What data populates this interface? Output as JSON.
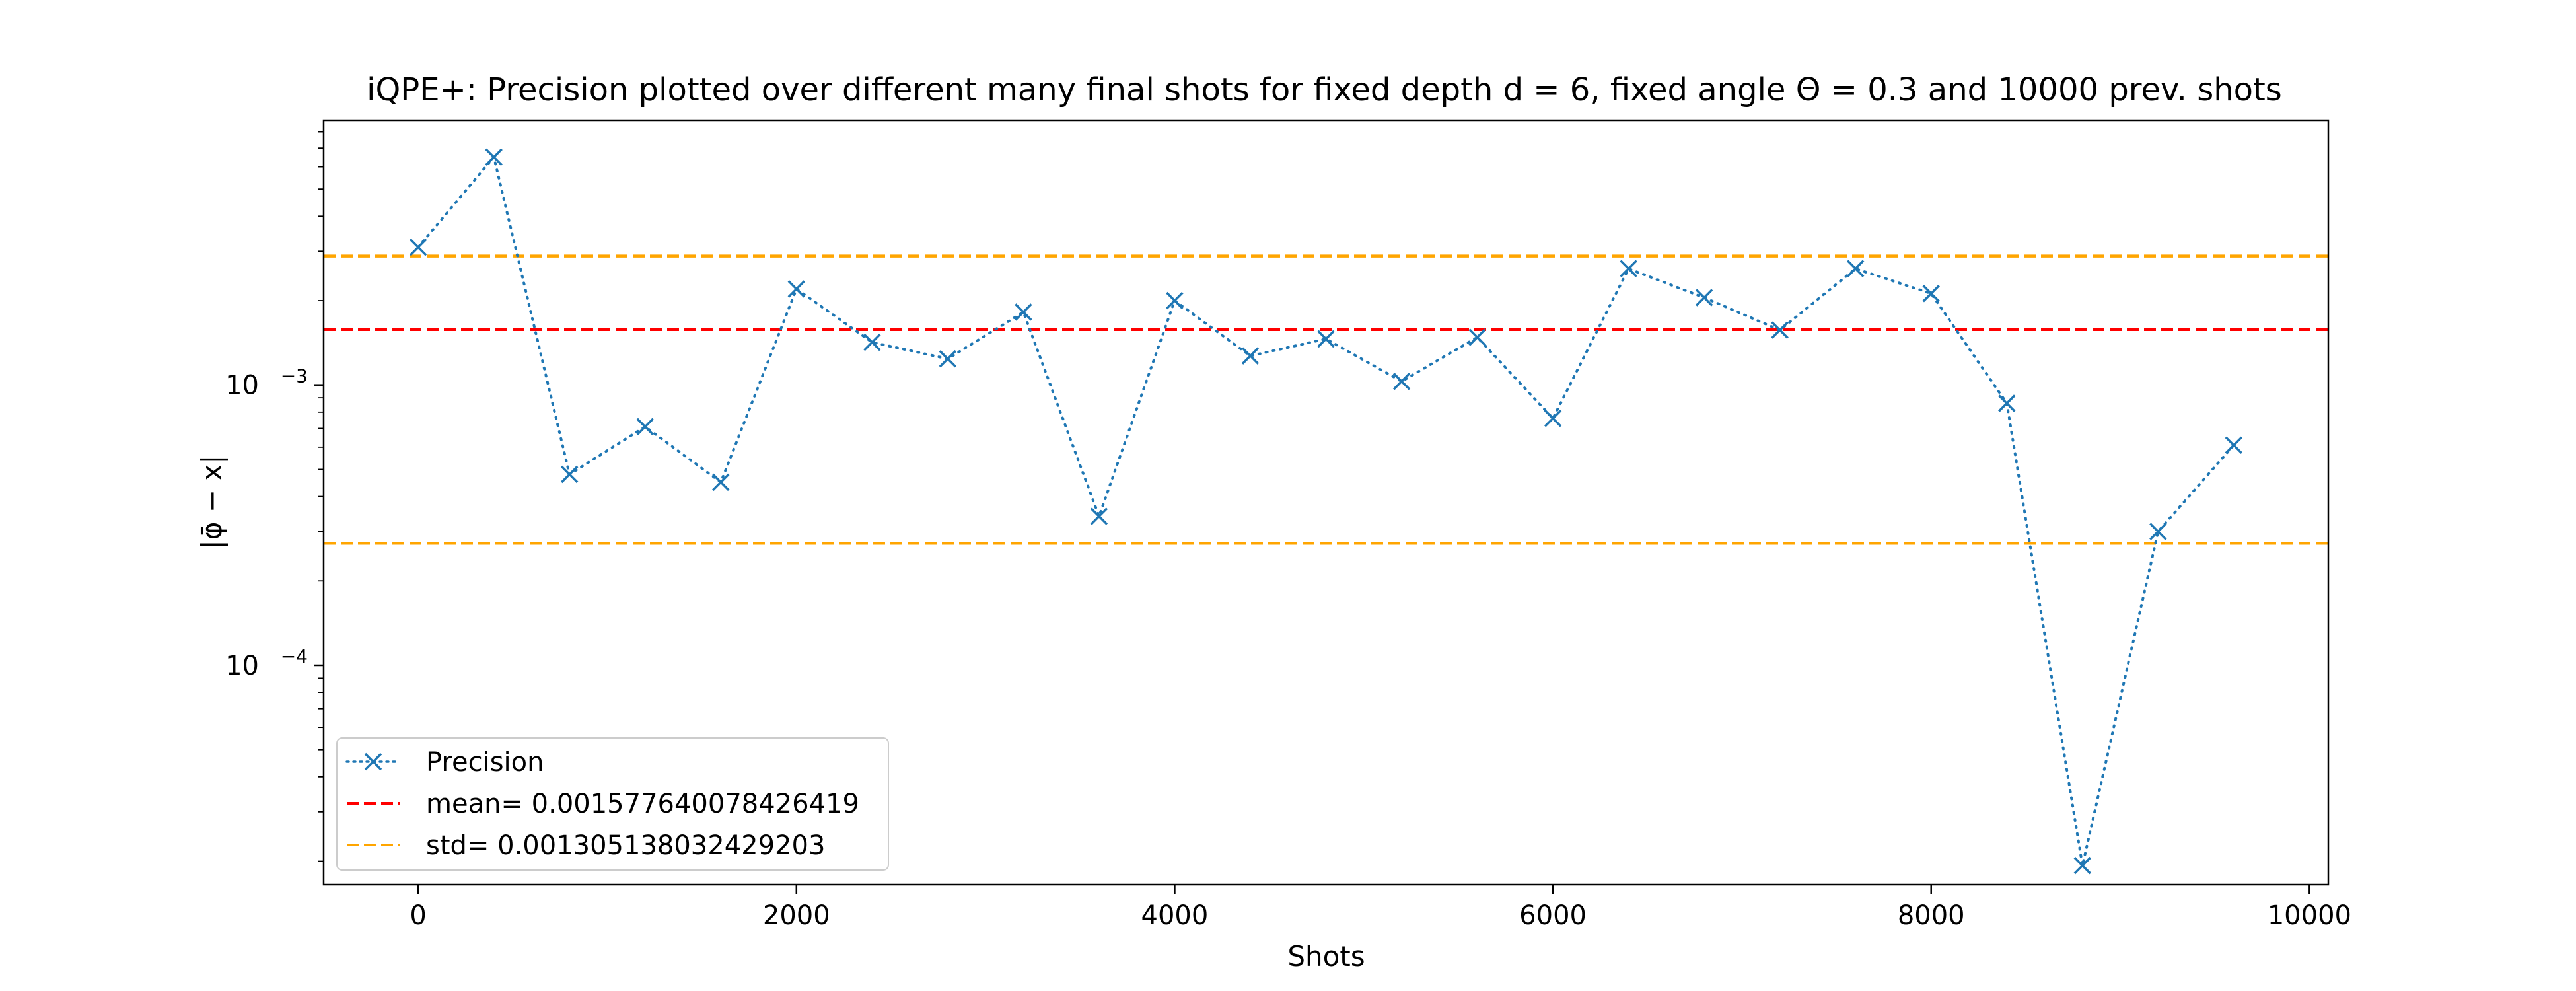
{
  "chart_data": {
    "type": "line",
    "title": "iQPE+: Precision plotted over different many final shots for fixed depth d = 6, fixed angle Θ = 0.3 and 10000 prev. shots",
    "xlabel": "Shots",
    "ylabel": "|φ̄ − x|",
    "xlim": [
      -500,
      10100
    ],
    "ylim": [
      1.65e-05,
      0.0088
    ],
    "yscale": "log",
    "grid": false,
    "legend_position": "lower-left",
    "x_ticks": [
      0,
      2000,
      4000,
      6000,
      8000,
      10000
    ],
    "x_tick_labels": [
      "0",
      "2000",
      "4000",
      "6000",
      "8000",
      "10000"
    ],
    "y_ticks": [
      0.0001,
      0.001
    ],
    "y_tick_labels": [
      {
        "base": "10",
        "exp": "−4"
      },
      {
        "base": "10",
        "exp": "−3"
      }
    ],
    "series": [
      {
        "name": "Precision",
        "color": "#1f77b4",
        "line_style": "dotted",
        "marker": "x",
        "x": [
          0,
          400,
          800,
          1200,
          1600,
          2000,
          2400,
          2800,
          3200,
          3600,
          4000,
          4400,
          4800,
          5200,
          5600,
          6000,
          6400,
          6800,
          7200,
          7600,
          8000,
          8400,
          8800,
          9200,
          9600
        ],
        "values": [
          0.0031,
          0.0065,
          0.00048,
          0.00071,
          0.00045,
          0.0022,
          0.00142,
          0.00124,
          0.00182,
          0.00034,
          0.002,
          0.00127,
          0.00146,
          0.00103,
          0.00148,
          0.00076,
          0.0026,
          0.00205,
          0.00157,
          0.0026,
          0.00212,
          0.00086,
          1.93e-05,
          0.0003,
          0.00061
        ]
      }
    ],
    "reference_lines": [
      {
        "name": "mean= 0.001577640078426419",
        "value": 0.001577640078426419,
        "color": "#ff0000",
        "line_style": "dashed"
      },
      {
        "name": "std= 0.001305138032429203",
        "value": 0.002882778110855622,
        "color": "#ffa500",
        "line_style": "dashed"
      },
      {
        "name": "std= 0.001305138032429203",
        "value": 0.000272502045997216,
        "color": "#ffa500",
        "line_style": "dashed"
      }
    ],
    "legend": [
      {
        "label": "Precision",
        "color": "#1f77b4",
        "style": "dotted-x"
      },
      {
        "label": "mean= 0.001577640078426419",
        "color": "#ff0000",
        "style": "dashed"
      },
      {
        "label": "std= 0.001305138032429203",
        "color": "#ffa500",
        "style": "dashed"
      }
    ]
  }
}
